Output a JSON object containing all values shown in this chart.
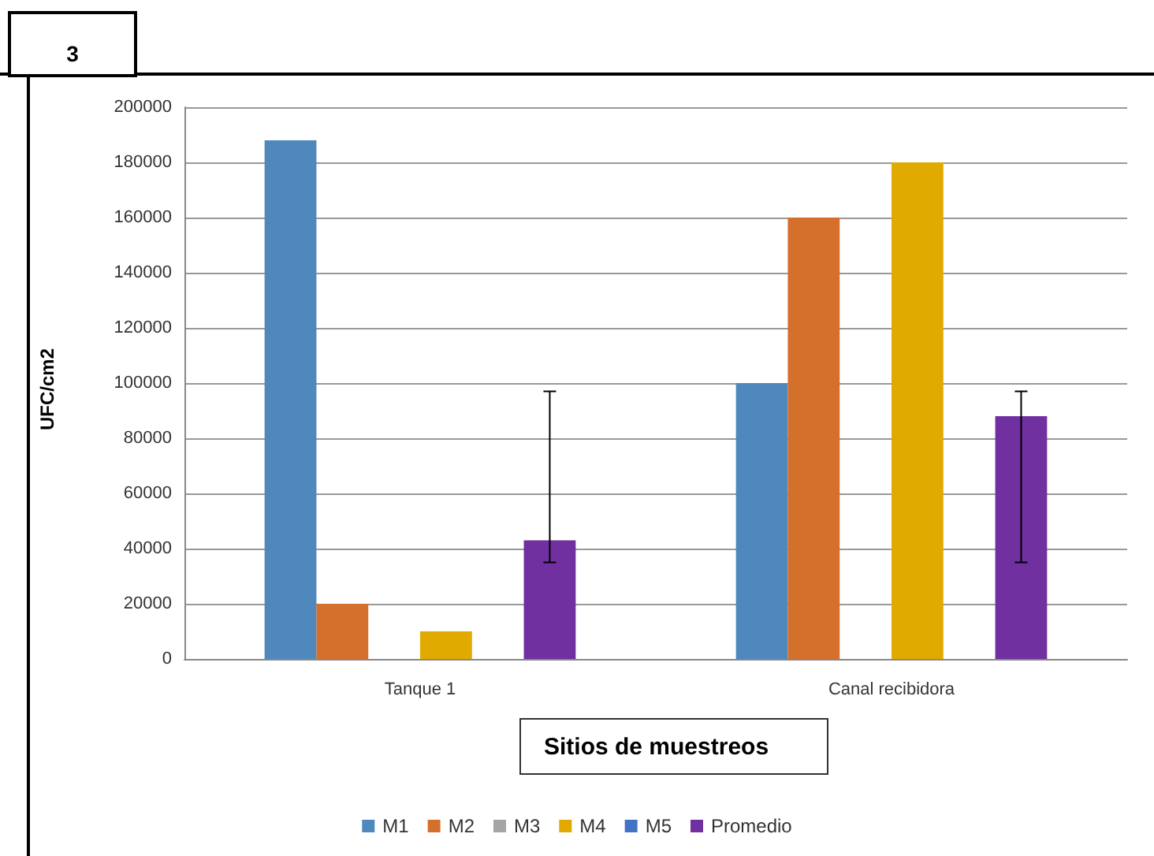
{
  "chart_data": {
    "type": "bar",
    "xlabel": "Sitios de muestreos",
    "ylabel": "UFC/cm2",
    "annotations": [
      "3"
    ],
    "categories": [
      "Tanque 1",
      "Canal recibidora"
    ],
    "series": [
      {
        "name": "M1",
        "color": "#4f88bd",
        "values": [
          188000,
          100000
        ]
      },
      {
        "name": "M2",
        "color": "#d46f2c",
        "values": [
          20000,
          160000
        ]
      },
      {
        "name": "M3",
        "color": "#a5a5a5",
        "values": [
          0,
          0
        ]
      },
      {
        "name": "M4",
        "color": "#e0aa00",
        "values": [
          10000,
          180000
        ]
      },
      {
        "name": "M5",
        "color": "#4472c4",
        "values": [
          0,
          0
        ]
      },
      {
        "name": "Promedio",
        "color": "#7030a0",
        "values": [
          43000,
          88000
        ],
        "errors": [
          [
            35000,
            97000
          ],
          [
            35000,
            97000
          ]
        ]
      }
    ],
    "ylim": [
      0,
      200000
    ],
    "yticks": [
      0,
      20000,
      40000,
      60000,
      80000,
      100000,
      120000,
      140000,
      160000,
      180000,
      200000
    ],
    "grid": "y",
    "legend": "bottom"
  }
}
